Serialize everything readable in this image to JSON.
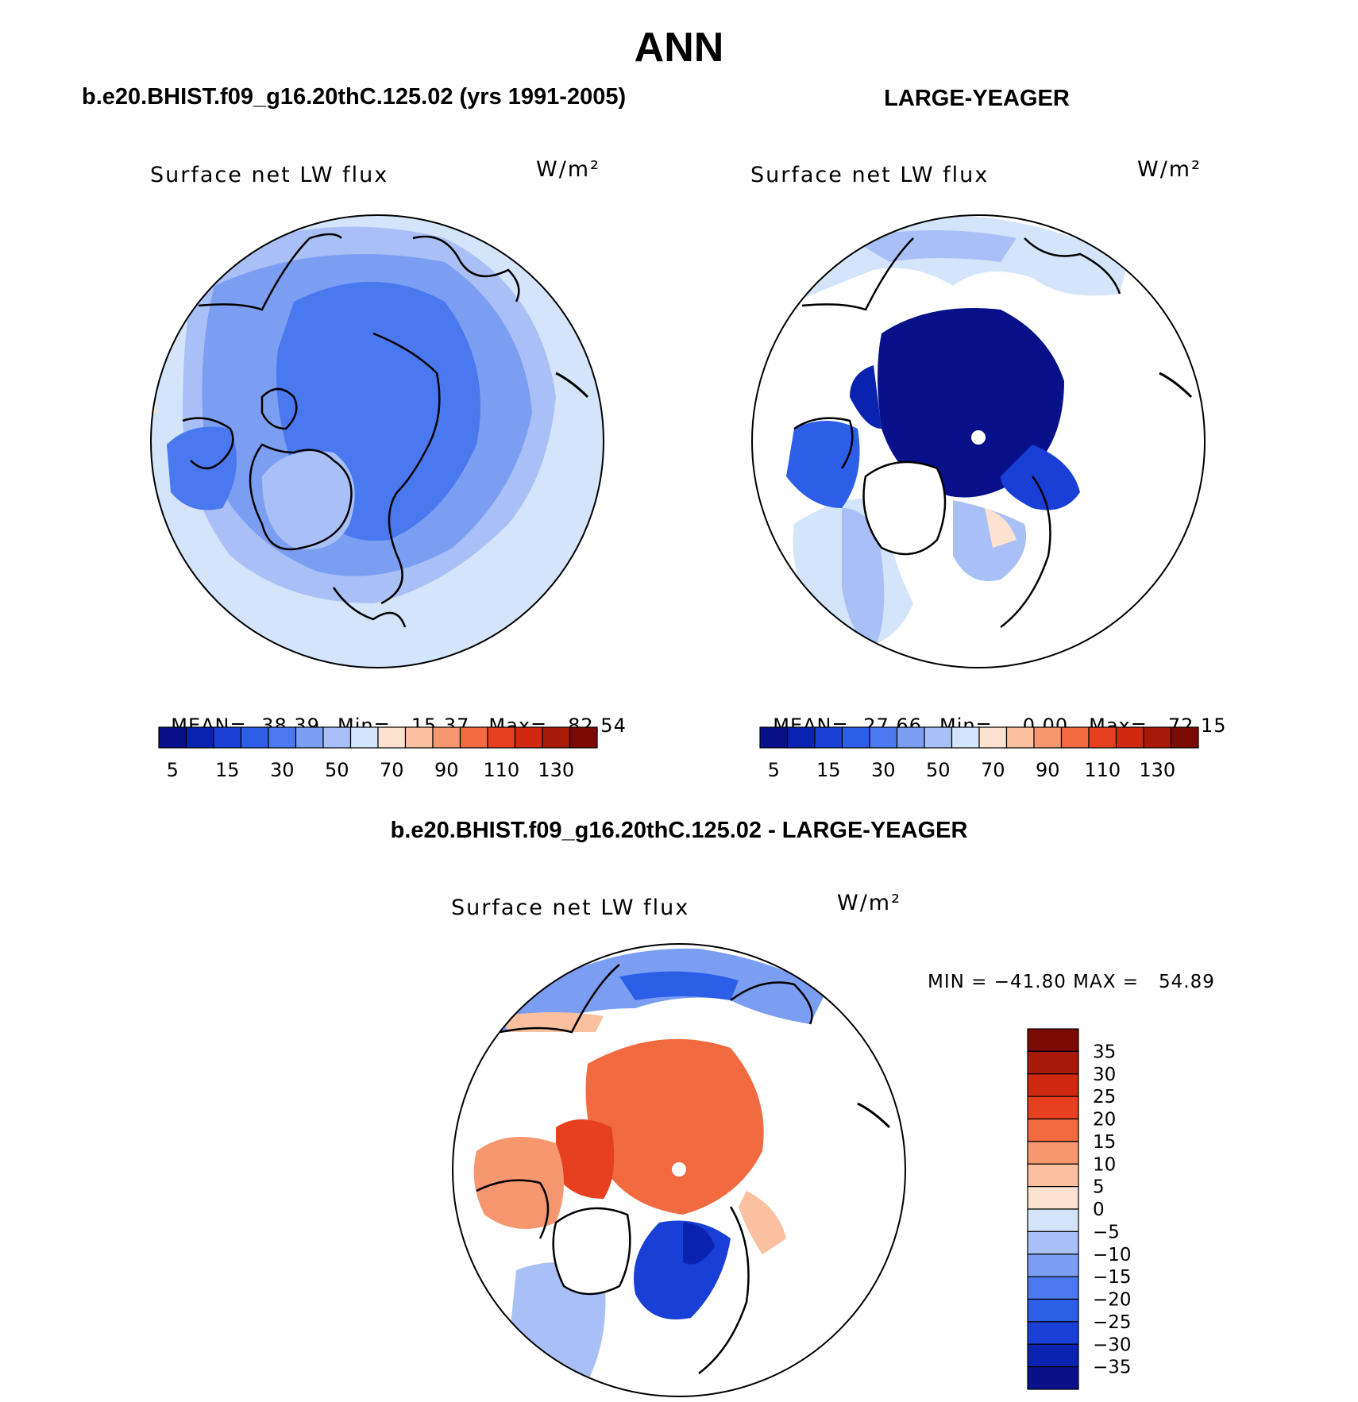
{
  "main_title": "ANN",
  "panels": {
    "left": {
      "case_title": "b.e20.BHIST.f09_g16.20thC.125.02 (yrs 1991-2005)",
      "variable": "Surface net LW flux",
      "units": "W/m²",
      "stats": {
        "mean_label": "MEAN=",
        "mean": "38.39",
        "min_label": "Min=",
        "min": "15.37",
        "max_label": "Max=",
        "max": "82.54"
      }
    },
    "right": {
      "case_title": "LARGE-YEAGER",
      "variable": "Surface net LW flux",
      "units": "W/m²",
      "stats": {
        "mean_label": "MEAN=",
        "mean": "27.66",
        "min_label": "Min=",
        "min": "0.00",
        "max_label": "Max=",
        "max": "72.15"
      }
    },
    "diff": {
      "case_title": "b.e20.BHIST.f09_g16.20thC.125.02 - LARGE-YEAGER",
      "variable": "Surface net LW flux",
      "units": "W/m²",
      "minmax": "MIN = −41.80 MAX =   54.89"
    }
  },
  "colorbars": {
    "abs_colors": [
      "#08108a",
      "#0a22b0",
      "#1a3fd6",
      "#2c5ee8",
      "#4a78ee",
      "#7c9ef2",
      "#a9c0f7",
      "#d4e4fb",
      "#fde2cf",
      "#fbc0a0",
      "#f7976f",
      "#f26a40",
      "#e74020",
      "#cf2a10",
      "#a71a08",
      "#7c0a04"
    ],
    "abs_ticks": [
      "5",
      "15",
      "30",
      "50",
      "70",
      "90",
      "110",
      "130"
    ],
    "diff_colors": [
      "#7c0a04",
      "#a71a08",
      "#cf2a10",
      "#e74020",
      "#f26a40",
      "#f7976f",
      "#fbc0a0",
      "#fde2cf",
      "#d4e4fb",
      "#a9c0f7",
      "#7c9ef2",
      "#4a78ee",
      "#2c5ee8",
      "#1a3fd6",
      "#0a22b0",
      "#08108a"
    ],
    "diff_ticks": [
      "35",
      "30",
      "25",
      "20",
      "15",
      "10",
      "5",
      "0",
      "−5",
      "−10",
      "−15",
      "−20",
      "−25",
      "−30",
      "−35"
    ]
  }
}
